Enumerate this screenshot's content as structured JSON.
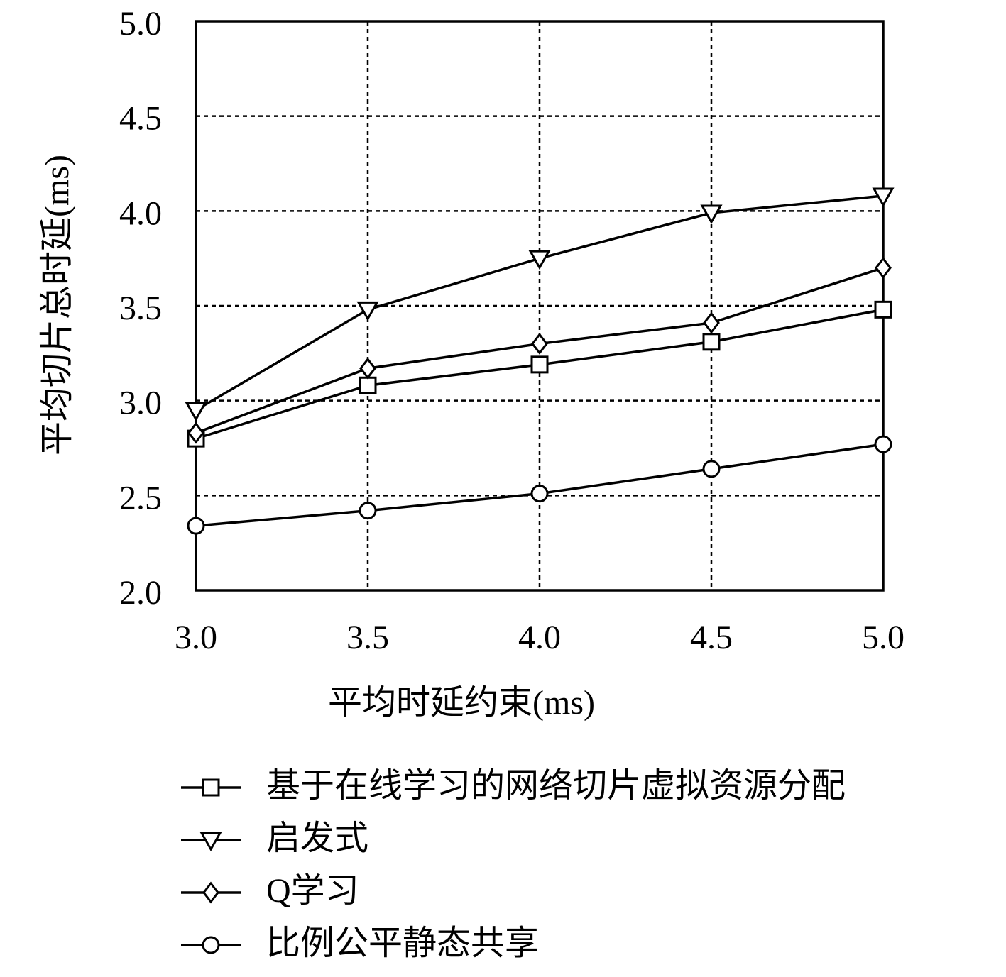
{
  "chart_data": {
    "type": "line",
    "x_label": "平均时延约束(ms)",
    "y_label": "平均切片总时延(ms)",
    "x": [
      3.0,
      3.5,
      4.0,
      4.5,
      5.0
    ],
    "xlim": [
      3.0,
      5.0
    ],
    "xticks": [
      {
        "value": 3.0,
        "label": "3.0"
      },
      {
        "value": 3.5,
        "label": "3.5"
      },
      {
        "value": 4.0,
        "label": "4.0"
      },
      {
        "value": 4.5,
        "label": "4.5"
      },
      {
        "value": 5.0,
        "label": "5.0"
      }
    ],
    "ylim": [
      2.0,
      5.0
    ],
    "yticks": [
      {
        "value": 2.0,
        "label": "2.0"
      },
      {
        "value": 2.5,
        "label": "2.5"
      },
      {
        "value": 3.0,
        "label": "3.0"
      },
      {
        "value": 3.5,
        "label": "3.5"
      },
      {
        "value": 4.0,
        "label": "4.0"
      },
      {
        "value": 4.5,
        "label": "4.5"
      },
      {
        "value": 5.0,
        "label": "5.0"
      }
    ],
    "grid": true,
    "legend": "bottom",
    "series": [
      {
        "name": "基于在线学习的网络切片虚拟资源分配",
        "color": "#000000",
        "marker": "square",
        "values": [
          2.8,
          3.08,
          3.19,
          3.31,
          3.48
        ]
      },
      {
        "name": "启发式",
        "color": "#000000",
        "marker": "triangle-down",
        "values": [
          2.95,
          3.48,
          3.75,
          3.99,
          4.08
        ]
      },
      {
        "name": "Q学习",
        "color": "#000000",
        "marker": "diamond",
        "values": [
          2.83,
          3.17,
          3.3,
          3.41,
          3.7
        ]
      },
      {
        "name": "比例公平静态共享",
        "color": "#000000",
        "marker": "circle",
        "values": [
          2.34,
          2.42,
          2.51,
          2.64,
          2.77
        ]
      }
    ]
  }
}
